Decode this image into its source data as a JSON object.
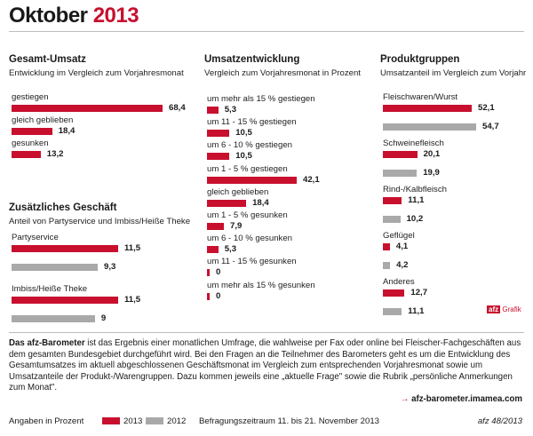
{
  "page": {
    "title_month": "Oktober",
    "title_year": "2013",
    "colors": {
      "current": "#c8102e",
      "previous": "#a9a9a9"
    }
  },
  "description": {
    "lead": "Das afz-Barometer",
    "text": " ist das Ergebnis einer monatlichen Umfrage, die wahlweise per Fax oder online bei Fleischer-Fachgeschäften aus dem gesamten Bundesgebiet durchgeführt wird. Bei den Fragen an die Teilnehmer des Barometers geht es um die Entwicklung des Gesamtumsatzes im aktuell abgeschlossenen Geschäftsmonat im Vergleich zum entsprechenden Vorjahresmonat sowie um Umsatzanteile der Produkt-/Warengruppen. Dazu kommen jeweils eine „aktuelle Frage\" sowie die Rubrik „persönliche Anmerkungen zum Monat\"."
  },
  "link": {
    "arrow": "→",
    "text": "afz-barometer.imamea.com"
  },
  "footer": {
    "units": "Angaben in Prozent",
    "legend_current": "2013",
    "legend_previous": "2012",
    "period": "Befragungszeitraum 11. bis 21. November 2013",
    "issue": "afz 48/2013"
  },
  "logo": {
    "box": "afz",
    "text": "Grafik"
  },
  "chart_data": [
    {
      "type": "bar",
      "title": "Gesamt-Umsatz",
      "subtitle": "Entwicklung im Vergleich zum Vorjahresmonat",
      "categories": [
        "gestiegen",
        "gleich geblieben",
        "gesunken"
      ],
      "series": [
        {
          "name": "2013",
          "values": [
            68.4,
            18.4,
            13.2
          ]
        }
      ]
    },
    {
      "type": "bar",
      "title": "Zusätzliches Geschäft",
      "subtitle": "Anteil von Partyservice und Imbiss/Heiße Theke",
      "categories": [
        "Partyservice",
        "Imbiss/Heiße Theke"
      ],
      "series": [
        {
          "name": "2013",
          "values": [
            11.5,
            11.5
          ]
        },
        {
          "name": "2012",
          "values": [
            9.3,
            9.0
          ]
        }
      ]
    },
    {
      "type": "bar",
      "title": "Umsatzentwicklung",
      "subtitle": "Vergleich zum Vorjahresmonat in Prozent",
      "categories": [
        "um mehr als 15 % gestiegen",
        "um 11 - 15 % gestiegen",
        "um 6 - 10 % gestiegen",
        "um 1 - 5 % gestiegen",
        "gleich geblieben",
        "um 1 - 5 % gesunken",
        "um 6 - 10 % gesunken",
        "um 11 - 15 % gesunken",
        "um mehr als 15 % gesunken"
      ],
      "series": [
        {
          "name": "2013",
          "values": [
            5.3,
            10.5,
            10.5,
            42.1,
            18.4,
            7.9,
            5.3,
            0,
            0
          ]
        }
      ]
    },
    {
      "type": "bar",
      "title": "Produktgruppen",
      "subtitle": "Umsatzanteil im Vergleich zum Vorjahr",
      "categories": [
        "Fleischwaren/Wurst",
        "Schweinefleisch",
        "Rind-/Kalbfleisch",
        "Geflügel",
        "Anderes"
      ],
      "series": [
        {
          "name": "2013",
          "values": [
            52.1,
            20.1,
            11.1,
            4.1,
            12.7
          ]
        },
        {
          "name": "2012",
          "values": [
            54.7,
            19.9,
            10.2,
            4.2,
            11.1
          ]
        }
      ]
    }
  ]
}
